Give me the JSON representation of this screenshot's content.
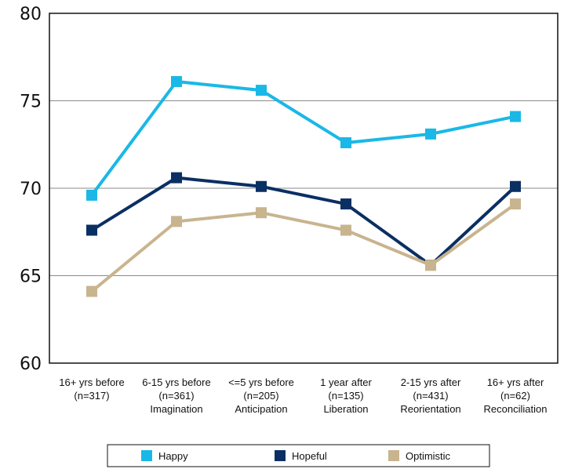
{
  "chart_data": {
    "type": "line",
    "categories": [
      [
        "16+ yrs before",
        "(n=317)",
        ""
      ],
      [
        "6-15 yrs before",
        "(n=361)",
        "Imagination"
      ],
      [
        "<=5 yrs before",
        "(n=205)",
        "Anticipation"
      ],
      [
        "1 year after",
        "(n=135)",
        "Liberation"
      ],
      [
        "2-15 yrs after",
        "(n=431)",
        "Reorientation"
      ],
      [
        "16+ yrs after",
        "(n=62)",
        "Reconciliation"
      ]
    ],
    "ylim": [
      60,
      80
    ],
    "yticks": [
      "60",
      "65",
      "70",
      "75",
      "80"
    ],
    "grid": "horizontal",
    "legend_position": "bottom",
    "series": [
      {
        "name": "Happy",
        "color": "#1ab8e6",
        "values": [
          69.6,
          76.1,
          75.6,
          72.6,
          73.1,
          74.1
        ]
      },
      {
        "name": "Hopeful",
        "color": "#0a2f63",
        "values": [
          67.6,
          70.6,
          70.1,
          69.1,
          65.6,
          70.1
        ]
      },
      {
        "name": "Optimistic",
        "color": "#c8b48e",
        "values": [
          64.1,
          68.1,
          68.6,
          67.6,
          65.6,
          69.1
        ]
      }
    ]
  }
}
